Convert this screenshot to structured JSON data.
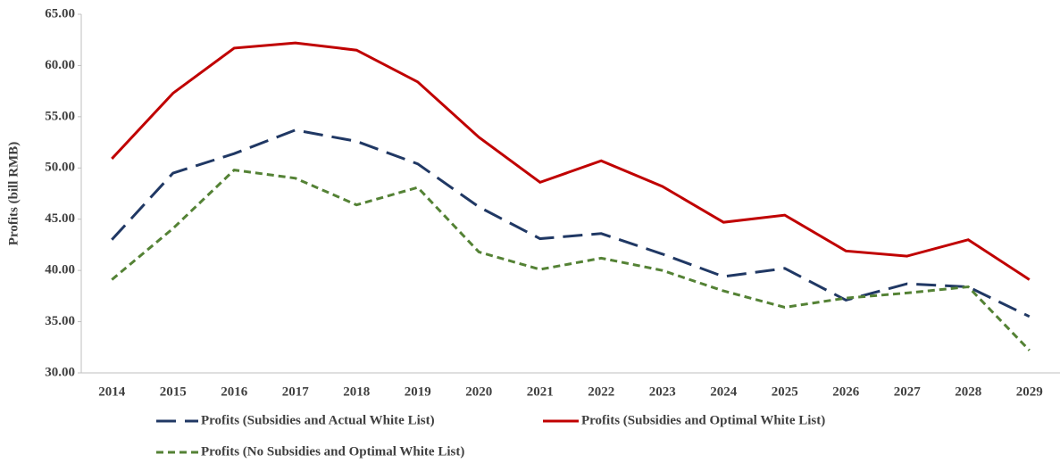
{
  "chart_data": {
    "type": "line",
    "y_label": "Profits (bill RMB)",
    "categories": [
      "2014",
      "2015",
      "2016",
      "2017",
      "2018",
      "2019",
      "2020",
      "2021",
      "2022",
      "2023",
      "2024",
      "2025",
      "2026",
      "2027",
      "2028",
      "2029"
    ],
    "series": [
      {
        "name": "Profits (Subsidies and Actual White List)",
        "color": "#203864",
        "dash": "long",
        "values": [
          43.0,
          49.5,
          51.4,
          53.7,
          52.6,
          50.4,
          46.2,
          43.1,
          43.6,
          41.6,
          39.4,
          40.2,
          37.1,
          38.7,
          38.4,
          35.5
        ]
      },
      {
        "name": "Profits (Subsidies and Optimal White List)",
        "color": "#c00000",
        "dash": "solid",
        "values": [
          50.9,
          57.3,
          61.7,
          62.2,
          61.5,
          58.4,
          53.0,
          48.6,
          50.7,
          48.2,
          44.7,
          45.4,
          41.9,
          41.4,
          43.0,
          39.1
        ]
      },
      {
        "name": "Profits (No Subsidies and Optimal White List)",
        "color": "#548235",
        "dash": "short",
        "values": [
          39.1,
          44.1,
          49.8,
          49.0,
          46.4,
          48.1,
          41.8,
          40.1,
          41.2,
          40.0,
          38.0,
          36.4,
          37.3,
          37.8,
          38.4,
          32.2
        ]
      }
    ],
    "ylim": [
      30,
      65
    ],
    "yticks": [
      {
        "value": 30,
        "label": "30.00"
      },
      {
        "value": 35,
        "label": "35.00"
      },
      {
        "value": 40,
        "label": "40.00"
      },
      {
        "value": 45,
        "label": "45.00"
      },
      {
        "value": 50,
        "label": "50.00"
      },
      {
        "value": 55,
        "label": "55.00"
      },
      {
        "value": 60,
        "label": "60.00"
      },
      {
        "value": 65,
        "label": "65.00"
      }
    ],
    "grid": false
  }
}
